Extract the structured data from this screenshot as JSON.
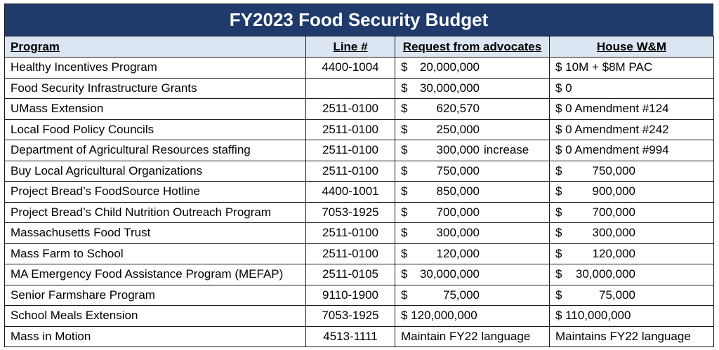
{
  "title": "FY2023 Food Security Budget",
  "headers": [
    "Program",
    "Line #",
    "Request from advocates",
    "House W&M"
  ],
  "rows": [
    {
      "program": "Healthy Incentives Program",
      "line": "4400-1004",
      "request": {
        "cur": "$",
        "amt": "20,000,000",
        "note": ""
      },
      "house": {
        "cur": "",
        "amt": "$ 10M + $8M PAC",
        "note": ""
      }
    },
    {
      "program": "Food Security Infrastructure Grants",
      "line": "",
      "request": {
        "cur": "$",
        "amt": "30,000,000",
        "note": ""
      },
      "house": {
        "cur": "",
        "amt": "$ 0",
        "note": ""
      }
    },
    {
      "program": "UMass Extension",
      "line": "2511-0100",
      "request": {
        "cur": "$",
        "amt": "620,570",
        "note": ""
      },
      "house": {
        "cur": "",
        "amt": "$ 0  Amendment #124",
        "note": ""
      }
    },
    {
      "program": "Local Food Policy Councils",
      "line": "2511-0100",
      "request": {
        "cur": "$",
        "amt": "250,000",
        "note": ""
      },
      "house": {
        "cur": "",
        "amt": "$ 0  Amendment #242",
        "note": ""
      }
    },
    {
      "program": "Department of Agricultural Resources staffing",
      "line": "2511-0100",
      "request": {
        "cur": "$",
        "amt": "300,000",
        "note": "increase"
      },
      "house": {
        "cur": "",
        "amt": "$ 0  Amendment #994",
        "note": ""
      }
    },
    {
      "program": "Buy Local Agricultural Organizations",
      "line": "2511-0100",
      "request": {
        "cur": "$",
        "amt": "750,000",
        "note": ""
      },
      "house": {
        "cur": "$",
        "amt": "750,000",
        "note": ""
      }
    },
    {
      "program": "Project Bread’s FoodSource Hotline",
      "line": "4400-1001",
      "request": {
        "cur": "$",
        "amt": "850,000",
        "note": ""
      },
      "house": {
        "cur": "$",
        "amt": "900,000",
        "note": ""
      }
    },
    {
      "program": "Project Bread’s Child Nutrition Outreach Program",
      "line": "7053-1925",
      "request": {
        "cur": "$",
        "amt": "700,000",
        "note": ""
      },
      "house": {
        "cur": "$",
        "amt": "700,000",
        "note": ""
      }
    },
    {
      "program": "Massachusetts Food Trust",
      "line": "2511-0100",
      "request": {
        "cur": "$",
        "amt": "300,000",
        "note": ""
      },
      "house": {
        "cur": "$",
        "amt": "300,000",
        "note": ""
      }
    },
    {
      "program": "Mass Farm to School",
      "line": "2511-0100",
      "request": {
        "cur": "$",
        "amt": "120,000",
        "note": ""
      },
      "house": {
        "cur": "$",
        "amt": "120,000",
        "note": ""
      }
    },
    {
      "program": "MA Emergency Food Assistance Program (MEFAP)",
      "line": "2511-0105",
      "request": {
        "cur": "$",
        "amt": "30,000,000",
        "note": ""
      },
      "house": {
        "cur": "$",
        "amt": "30,000,000",
        "note": ""
      }
    },
    {
      "program": "Senior Farmshare Program",
      "line": "9110-1900",
      "request": {
        "cur": "$",
        "amt": "75,000",
        "note": ""
      },
      "house": {
        "cur": "$",
        "amt": "75,000",
        "note": ""
      }
    },
    {
      "program": "School Meals Extension",
      "line": "7053-1925",
      "request": {
        "cur": "",
        "amt": "$ 120,000,000",
        "note": ""
      },
      "house": {
        "cur": "",
        "amt": "$ 110,000,000",
        "note": ""
      }
    },
    {
      "program": "Mass in Motion",
      "line": "4513-1111",
      "request": {
        "cur": "",
        "amt": "Maintain FY22 language",
        "note": ""
      },
      "house": {
        "cur": "",
        "amt": "Maintains FY22 language",
        "note": ""
      }
    }
  ]
}
